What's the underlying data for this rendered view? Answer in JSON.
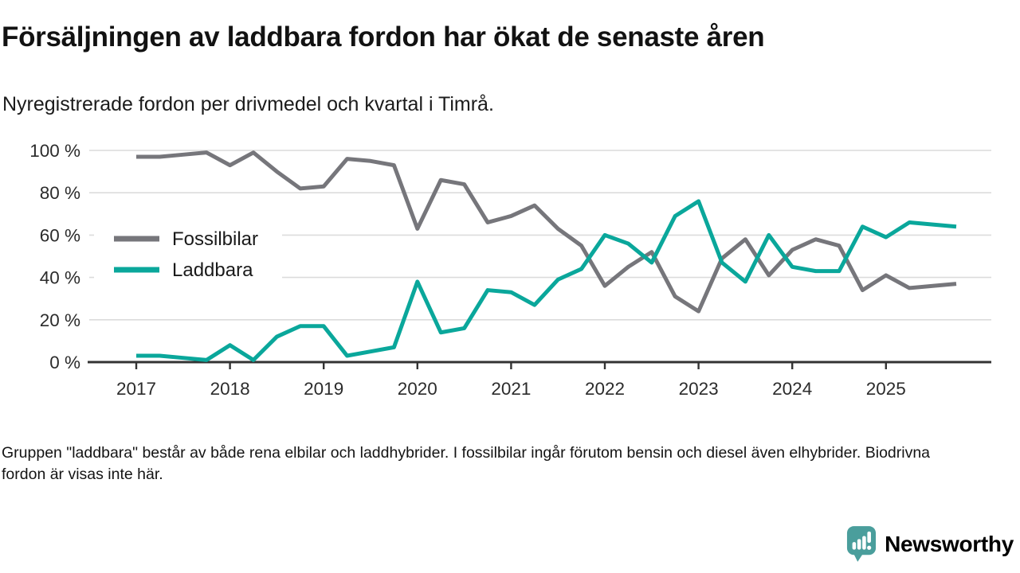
{
  "header": {
    "title": "Försäljningen av laddbara fordon har ökat de senaste åren",
    "subtitle": "Nyregistrerade fordon per drivmedel och kvartal i Timrå."
  },
  "chart_data": {
    "type": "line",
    "x_unit": "quarter",
    "points_per_year": 4,
    "x_start": "2017 Q1",
    "x_end": "2025 Q4",
    "x_tick_labels": [
      "2017",
      "2018",
      "2019",
      "2020",
      "2021",
      "2022",
      "2023",
      "2024",
      "2025"
    ],
    "y_tick_labels": [
      "0 %",
      "20 %",
      "40 %",
      "60 %",
      "80 %",
      "100 %"
    ],
    "ylim": [
      0,
      100
    ],
    "grid": "horizontal",
    "legend_position": "inside-left",
    "series": [
      {
        "name": "Fossilbilar",
        "color": "#76767b",
        "values": [
          97,
          97,
          98,
          99,
          93,
          99,
          90,
          82,
          83,
          96,
          95,
          93,
          63,
          86,
          84,
          66,
          69,
          74,
          63,
          55,
          36,
          45,
          52,
          31,
          24,
          49,
          58,
          41,
          53,
          58,
          55,
          34,
          41,
          35,
          36,
          37
        ]
      },
      {
        "name": "Laddbara",
        "color": "#0aa79b",
        "values": [
          3,
          3,
          2,
          1,
          8,
          1,
          12,
          17,
          17,
          3,
          5,
          7,
          38,
          14,
          16,
          34,
          33,
          27,
          39,
          44,
          60,
          56,
          47,
          69,
          76,
          47,
          38,
          60,
          45,
          43,
          43,
          64,
          59,
          66,
          65,
          64
        ]
      }
    ],
    "colors": {
      "gridline": "#dcdcdc",
      "axis": "#333333",
      "tick_label": "#2b2b2b"
    }
  },
  "footer": {
    "note": "Gruppen \"laddbara\" består av både rena elbilar och laddhybrider. I fossilbilar ingår förutom bensin och diesel även elhybrider. Biodrivna fordon är visas inte här."
  },
  "branding": {
    "logo_text": "Newsworthy",
    "logo_color": "#4a9e9c",
    "logo_icon": "speech-bubble-bar-chart-icon"
  }
}
